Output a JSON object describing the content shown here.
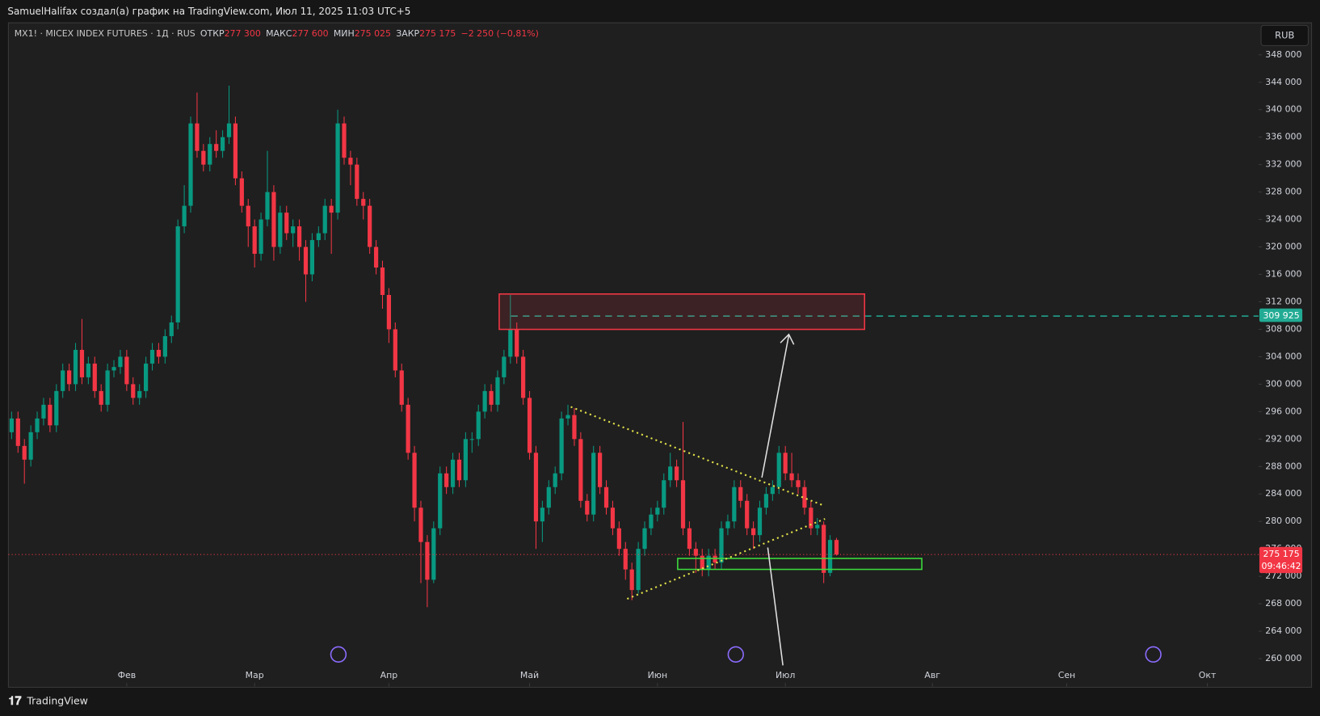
{
  "header": {
    "text": "SamuelHalifax создал(а) график на TradingView.com, Июл 11, 2025 11:03 UTC+5",
    "currency": "RUB",
    "brand": "TradingView"
  },
  "legend": {
    "symbol": "MX1! · MICEX INDEX FUTURES · 1Д · RUS",
    "open_label": "ОТКР",
    "open": "277 300",
    "high_label": "МАКС",
    "high": "277 600",
    "low_label": "МИН",
    "low": "275 025",
    "close_label": "ЗАКР",
    "close": "275 175",
    "change": "−2 250 (−0,81%)"
  },
  "chart_data": {
    "type": "candlestick",
    "up_color": "#089981",
    "down_color": "#f23645",
    "xlim": [
      -0.5,
      195
    ],
    "xticks": [
      {
        "value": 18,
        "label": "Фев"
      },
      {
        "value": 38,
        "label": "Мар"
      },
      {
        "value": 59,
        "label": "Апр"
      },
      {
        "value": 81,
        "label": "Май"
      },
      {
        "value": 101,
        "label": "Июн"
      },
      {
        "value": 121,
        "label": "Июл"
      },
      {
        "value": 144,
        "label": "Авг"
      },
      {
        "value": 165,
        "label": "Сен"
      },
      {
        "value": 187,
        "label": "Окт"
      }
    ],
    "ylim": [
      255950,
      352660
    ],
    "yticks": [
      {
        "value": 260000,
        "label": "260 000"
      },
      {
        "value": 264000,
        "label": "264 000"
      },
      {
        "value": 268000,
        "label": "268 000"
      },
      {
        "value": 272000,
        "label": "272 000"
      },
      {
        "value": 276000,
        "label": "276 000"
      },
      {
        "value": 280000,
        "label": "280 000"
      },
      {
        "value": 284000,
        "label": "284 000"
      },
      {
        "value": 288000,
        "label": "288 000"
      },
      {
        "value": 292000,
        "label": "292 000"
      },
      {
        "value": 296000,
        "label": "296 000"
      },
      {
        "value": 300000,
        "label": "300 000"
      },
      {
        "value": 304000,
        "label": "304 000"
      },
      {
        "value": 308000,
        "label": "308 000"
      },
      {
        "value": 312000,
        "label": "312 000"
      },
      {
        "value": 316000,
        "label": "316 000"
      },
      {
        "value": 320000,
        "label": "320 000"
      },
      {
        "value": 324000,
        "label": "324 000"
      },
      {
        "value": 328000,
        "label": "328 000"
      },
      {
        "value": 332000,
        "label": "332 000"
      },
      {
        "value": 336000,
        "label": "336 000"
      },
      {
        "value": 340000,
        "label": "340 000"
      },
      {
        "value": 344000,
        "label": "344 000"
      },
      {
        "value": 348000,
        "label": "348 000"
      }
    ],
    "price_labels": [
      {
        "value": 309925,
        "label": "309 925",
        "color": "#22ab94"
      },
      {
        "value": 275175,
        "label": "275 175",
        "timer": "09:46:42",
        "color": "#f23645"
      }
    ],
    "candles": {
      "open": [
        293000,
        295000,
        291000,
        289000,
        293000,
        295000,
        297000,
        294000,
        299000,
        302000,
        300000,
        305000,
        301000,
        303000,
        299000,
        297000,
        302000,
        302500,
        304000,
        300000,
        298000,
        299000,
        303000,
        305000,
        304000,
        307000,
        309000,
        323000,
        326000,
        338000,
        334000,
        332000,
        335000,
        334000,
        336000,
        338000,
        330000,
        326000,
        323000,
        319000,
        324000,
        328000,
        320000,
        325000,
        322000,
        323000,
        320000,
        316000,
        321000,
        322000,
        326000,
        325000,
        338000,
        333000,
        332000,
        327000,
        326000,
        320000,
        317000,
        313000,
        308000,
        302000,
        297000,
        290000,
        282000,
        277000,
        271500,
        279000,
        287000,
        285000,
        289000,
        286000,
        292000,
        292000,
        296000,
        299000,
        297000,
        301000,
        304000,
        308000,
        304000,
        298000,
        290000,
        280000,
        282000,
        285000,
        287000,
        295000,
        295500,
        292000,
        283000,
        281000,
        290000,
        285000,
        282000,
        279000,
        276000,
        273000,
        270000,
        276000,
        279000,
        281000,
        282000,
        286000,
        288000,
        286000,
        279000,
        276000,
        275000,
        273000,
        275000,
        274000,
        279000,
        280000,
        285000,
        283000,
        279000,
        278000,
        282000,
        284000,
        285000,
        290000,
        287000,
        286000,
        285000,
        282000,
        279000,
        279500,
        272500,
        277300
      ],
      "high": [
        296000,
        296000,
        292000,
        294000,
        296000,
        298000,
        298000,
        300000,
        303000,
        303000,
        306000,
        309500,
        304000,
        304000,
        300000,
        303000,
        303500,
        305000,
        305000,
        301000,
        300000,
        304000,
        306000,
        306000,
        308000,
        310000,
        324000,
        329000,
        339000,
        342500,
        335000,
        336000,
        337000,
        337000,
        343500,
        339000,
        331000,
        327000,
        324000,
        325000,
        334000,
        329000,
        326000,
        326000,
        324000,
        324000,
        321000,
        322000,
        323000,
        327000,
        327000,
        340000,
        339000,
        334000,
        333000,
        328000,
        327000,
        321000,
        318000,
        314000,
        309000,
        303000,
        298000,
        291000,
        283000,
        278000,
        280000,
        288000,
        288000,
        290000,
        290000,
        293000,
        293000,
        297000,
        300000,
        300000,
        302000,
        305000,
        313000,
        309000,
        305000,
        299000,
        291000,
        283000,
        286000,
        288000,
        296000,
        297000,
        296500,
        293000,
        284000,
        291000,
        291000,
        286000,
        283000,
        280000,
        277000,
        274000,
        277000,
        280000,
        282000,
        283000,
        287000,
        290000,
        289000,
        294500,
        280000,
        277000,
        276000,
        276000,
        276000,
        280000,
        281000,
        286000,
        286000,
        284000,
        280000,
        283000,
        285000,
        286000,
        291000,
        291000,
        290000,
        287000,
        286000,
        283000,
        280500,
        280000,
        278000,
        277600
      ],
      "low": [
        292000,
        290000,
        285500,
        288000,
        292000,
        294000,
        293000,
        293000,
        298000,
        299000,
        299000,
        300000,
        300000,
        298000,
        296000,
        296000,
        301000,
        301500,
        299000,
        297000,
        297000,
        298000,
        302000,
        303000,
        303000,
        306000,
        308000,
        322000,
        325000,
        333000,
        331000,
        331000,
        333000,
        333000,
        335000,
        329000,
        325000,
        320000,
        317000,
        318000,
        323000,
        318000,
        319000,
        321000,
        320000,
        318000,
        312000,
        315000,
        320000,
        321000,
        319000,
        324000,
        332000,
        329000,
        326000,
        324000,
        319000,
        316000,
        311000,
        306000,
        301000,
        296000,
        289000,
        280000,
        271000,
        267500,
        271000,
        278000,
        284000,
        284000,
        285000,
        285000,
        290000,
        291000,
        295000,
        296000,
        296000,
        300000,
        303000,
        303000,
        297000,
        289000,
        276000,
        277000,
        281000,
        284000,
        286000,
        294000,
        291000,
        282000,
        280000,
        280000,
        284000,
        281000,
        278000,
        275000,
        271500,
        268500,
        269500,
        275000,
        278000,
        280000,
        281000,
        285000,
        285000,
        278000,
        275000,
        272500,
        272000,
        272000,
        273000,
        273000,
        278000,
        279000,
        282000,
        278000,
        276000,
        277000,
        281000,
        283000,
        284000,
        286000,
        285000,
        284000,
        281000,
        278000,
        278000,
        271000,
        272000,
        275025
      ],
      "close": [
        295000,
        291000,
        289000,
        293000,
        295000,
        297000,
        294000,
        299000,
        302000,
        300000,
        305000,
        301000,
        303000,
        299000,
        297000,
        302000,
        302500,
        304000,
        300000,
        298000,
        299000,
        303000,
        305000,
        304000,
        307000,
        309000,
        323000,
        326000,
        338000,
        334000,
        332000,
        335000,
        334000,
        336000,
        338000,
        330000,
        326000,
        323000,
        319000,
        324000,
        328000,
        320000,
        325000,
        322000,
        323000,
        320000,
        316000,
        321000,
        322000,
        326000,
        325000,
        338000,
        333000,
        332000,
        327000,
        326000,
        320000,
        317000,
        313000,
        308000,
        302000,
        297000,
        290000,
        282000,
        277000,
        271500,
        279000,
        287000,
        285000,
        289000,
        286000,
        292000,
        292000,
        296000,
        299000,
        297000,
        301000,
        304000,
        308000,
        304000,
        298000,
        290000,
        280000,
        282000,
        285000,
        287000,
        295000,
        295500,
        292000,
        283000,
        281000,
        290000,
        285000,
        282000,
        279000,
        276000,
        273000,
        270000,
        276000,
        279000,
        281000,
        282000,
        286000,
        288000,
        286000,
        279000,
        276000,
        275000,
        273000,
        275000,
        274000,
        279000,
        280000,
        285000,
        283000,
        279000,
        278000,
        282000,
        284000,
        285000,
        290000,
        287000,
        286000,
        285000,
        282000,
        279000,
        279500,
        272500,
        277300,
        275175
      ]
    }
  }
}
